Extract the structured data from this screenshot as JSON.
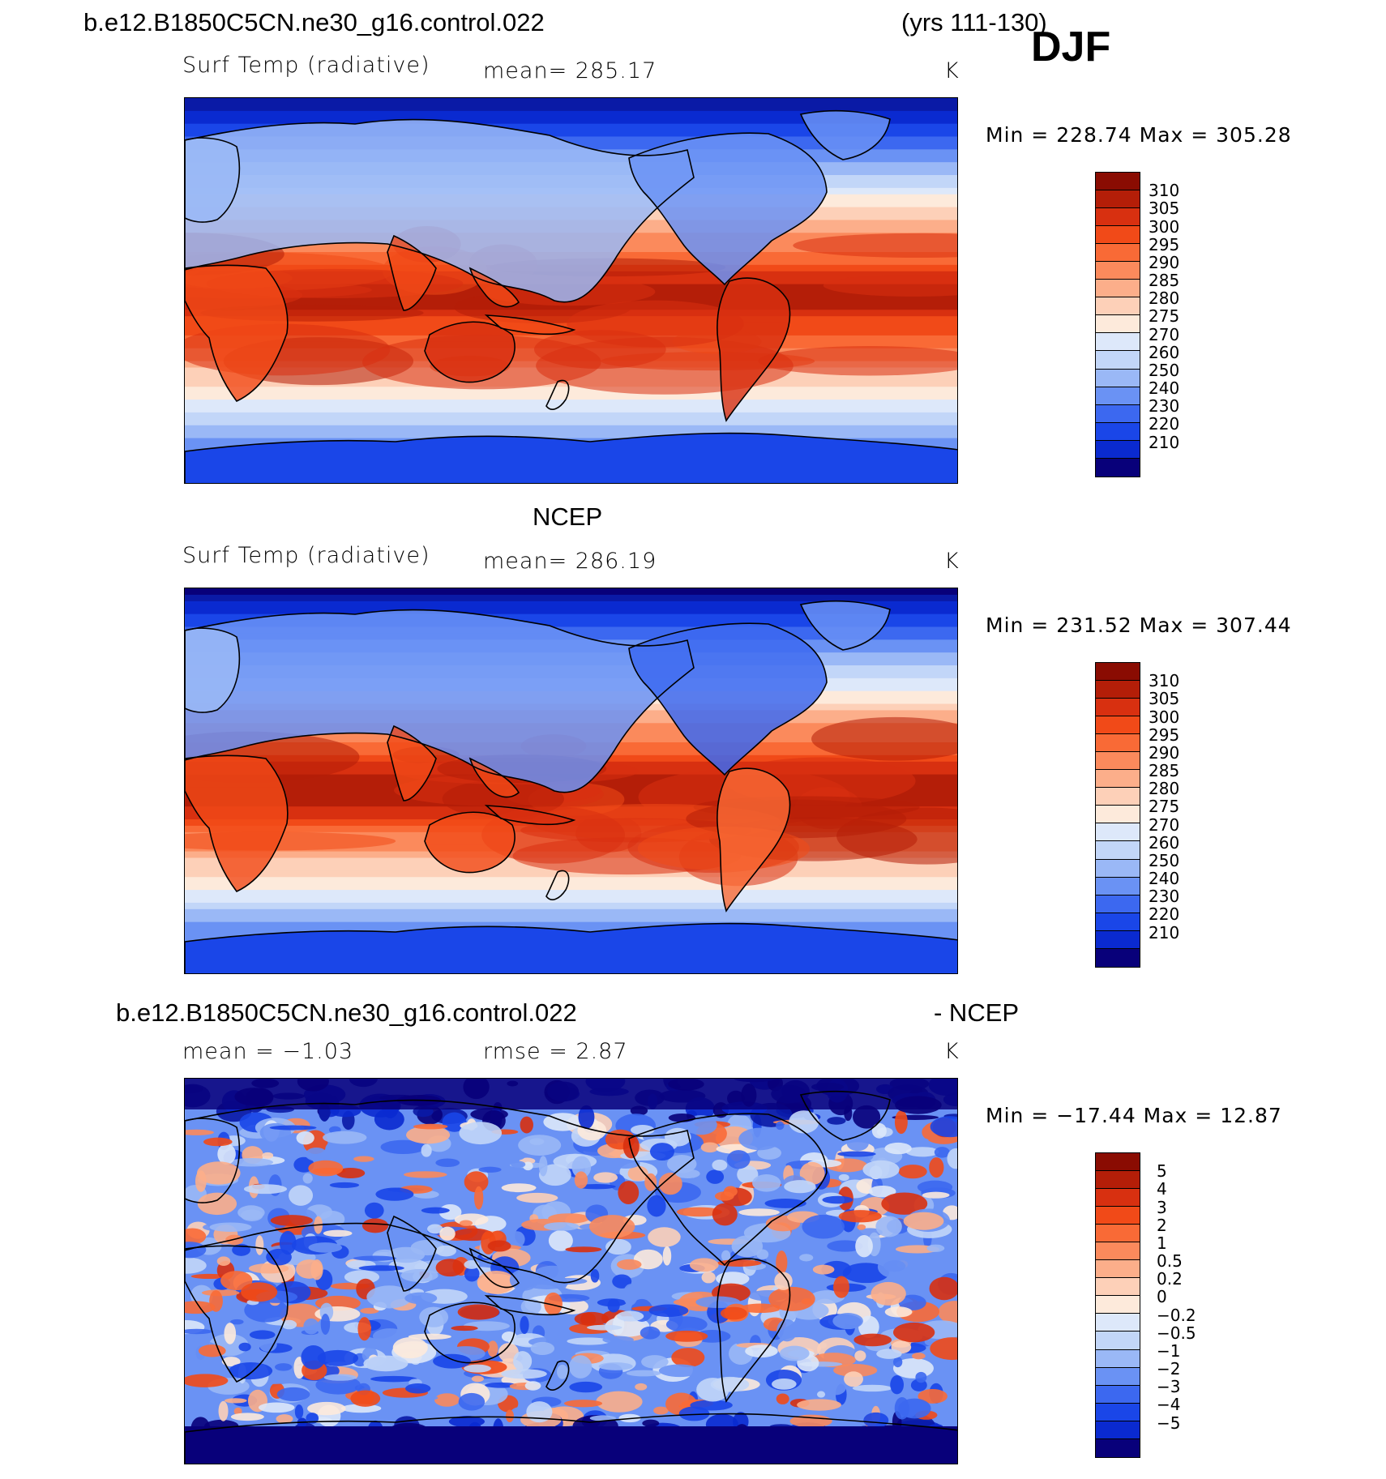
{
  "header": {
    "case_name": "b.e12.B1850C5CN.ne30_g16.control.022",
    "years": "(yrs 111-130)",
    "season": "DJF"
  },
  "panels": [
    {
      "id": "model",
      "variable": "Surf Temp (radiative)",
      "stat_text": "mean=  285.17",
      "units": "K",
      "minmax_text": "Min  =  228.74  Max  =  305.28",
      "cbar_levels": [
        "310",
        "305",
        "300",
        "295",
        "290",
        "285",
        "280",
        "275",
        "270",
        "260",
        "250",
        "240",
        "230",
        "220",
        "210"
      ]
    },
    {
      "id": "obs",
      "title": "NCEP",
      "variable": "Surf Temp (radiative)",
      "stat_text": "mean=  286.19",
      "units": "K",
      "minmax_text": "Min  =  231.52  Max  =  307.44",
      "cbar_levels": [
        "310",
        "305",
        "300",
        "295",
        "290",
        "285",
        "280",
        "275",
        "270",
        "260",
        "250",
        "240",
        "230",
        "220",
        "210"
      ]
    },
    {
      "id": "diff",
      "title_left": "b.e12.B1850C5CN.ne30_g16.control.022",
      "title_right": "- NCEP",
      "stat_mean": "mean  =    −1.03",
      "stat_rmse": "rmse  =     2.87",
      "units": "K",
      "minmax_text": "Min  =  −17.44  Max  =     12.87",
      "cbar_levels": [
        "5",
        "4",
        "3",
        "2",
        "1",
        "0.5",
        "0.2",
        "0",
        "−0.2",
        "−0.5",
        "−1",
        "−2",
        "−3",
        "−4",
        "−5"
      ]
    }
  ],
  "palette": [
    "#08007a",
    "#0a1aa6",
    "#0a2ad0",
    "#1a46e8",
    "#3c68f0",
    "#6a92f4",
    "#9ab8f6",
    "#c2d6f8",
    "#dde8fa",
    "#fdeadb",
    "#fdd0b8",
    "#fcae8a",
    "#fb8a5c",
    "#f96a36",
    "#f14a18",
    "#d83010",
    "#b41e08",
    "#8a0c02"
  ],
  "colorbar_fills": [
    "#8a0c02",
    "#b41e08",
    "#d83010",
    "#f14a18",
    "#f96a36",
    "#fb8a5c",
    "#fcae8a",
    "#fdd0b8",
    "#fdeadb",
    "#dde8fa",
    "#c2d6f8",
    "#9ab8f6",
    "#6a92f4",
    "#3c68f0",
    "#1a46e8",
    "#0a2ad0",
    "#08007a"
  ]
}
